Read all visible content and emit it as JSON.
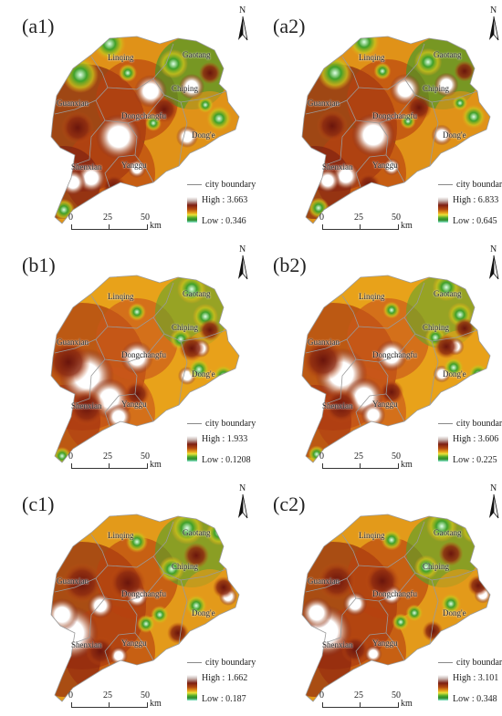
{
  "panels": [
    {
      "label": "(a1)",
      "high": "High : 3.663",
      "low": "Low : 0.346"
    },
    {
      "label": "(a2)",
      "high": "High : 6.833",
      "low": "Low : 0.645"
    },
    {
      "label": "(b1)",
      "high": "High : 1.933",
      "low": "Low : 0.1208"
    },
    {
      "label": "(b2)",
      "high": "High : 3.606",
      "low": "Low : 0.225"
    },
    {
      "label": "(c1)",
      "high": "High : 1.662",
      "low": "Low : 0.187"
    },
    {
      "label": "(c2)",
      "high": "High : 3.101",
      "low": "Low : 0.348"
    }
  ],
  "cities": [
    "Linqing",
    "Gaotang",
    "Guanxian",
    "Dongchangfu",
    "Chiping",
    "Dong'e",
    "Shenxian",
    "Yanggu"
  ],
  "legend": {
    "boundary_label": "city boundary"
  },
  "scale": {
    "ticks": [
      "0",
      "25",
      "50"
    ],
    "unit": "km"
  },
  "north_label": "N",
  "colors": {
    "high": "#7d1f12",
    "mid": "#e8a21a",
    "low": "#2e8b2a",
    "peak": "#ffffff",
    "boundary": "#9a9a9a"
  }
}
